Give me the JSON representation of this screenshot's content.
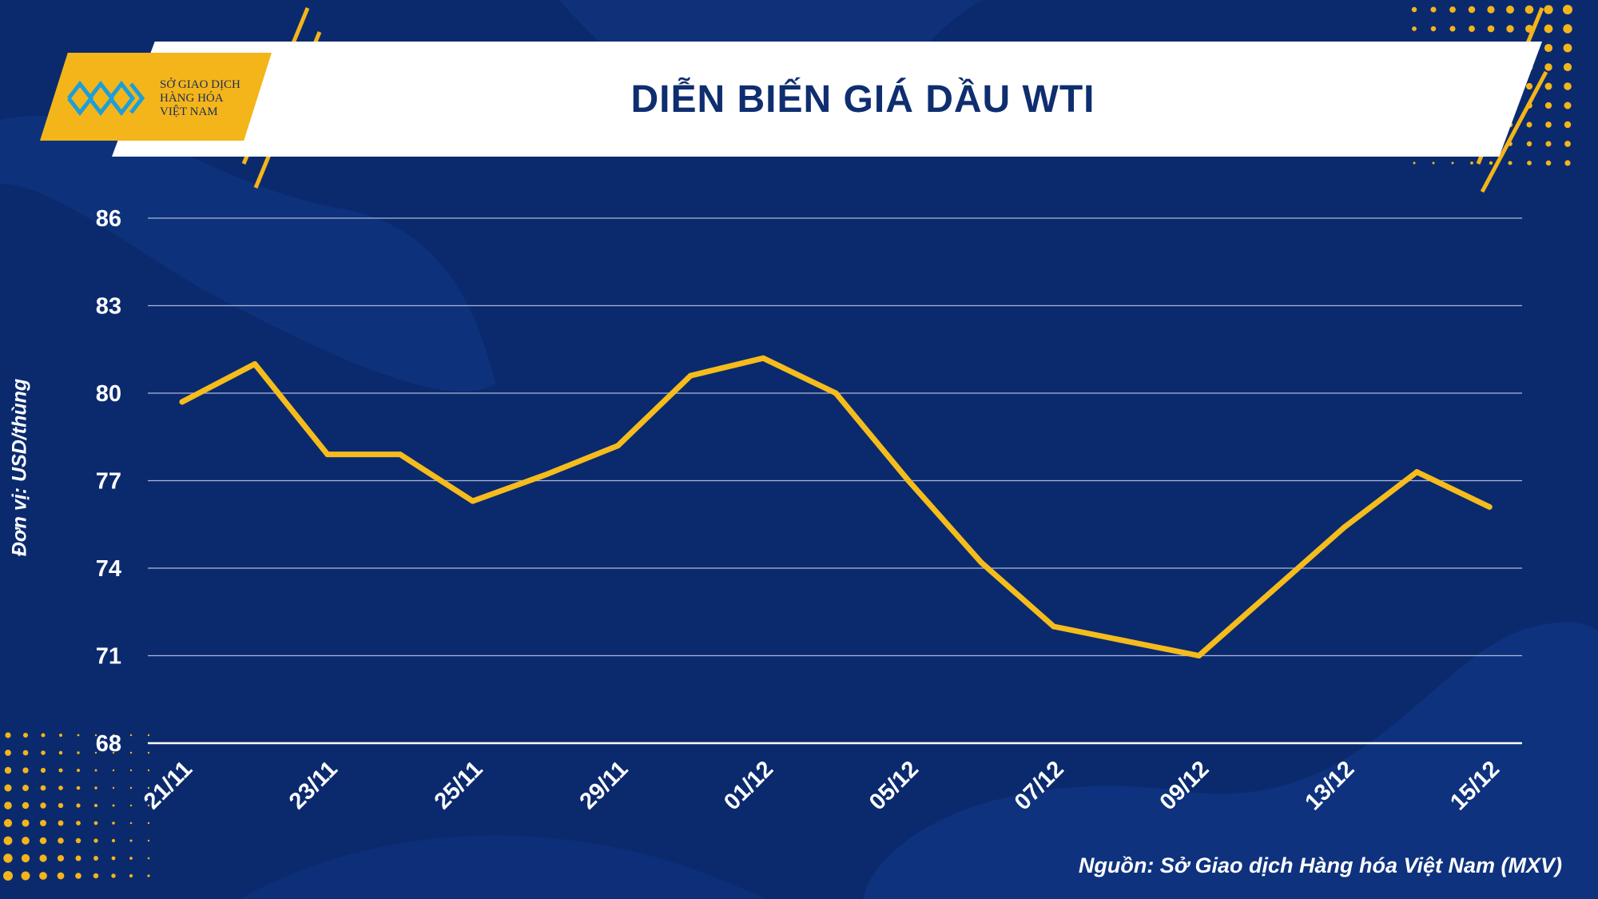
{
  "header": {
    "title": "DIỄN BIẾN GIÁ DẦU WTI",
    "logo_lines": [
      "SỞ GIAO DỊCH",
      "HÀNG HÓA",
      "VIỆT NAM"
    ]
  },
  "footer": {
    "source": "Nguồn: Sở Giao dịch Hàng hóa Việt Nam (MXV)"
  },
  "colors": {
    "background": "#0b2a6e",
    "line": "#f5bc1c",
    "accent": "#f4b51a",
    "grid": "#c9d3ea",
    "text": "#ffffff"
  },
  "chart_data": {
    "type": "line",
    "title": "DIỄN BIẾN GIÁ DẦU WTI",
    "xlabel": "",
    "ylabel": "Đơn vị: USD/thùng",
    "ylim": [
      68,
      86
    ],
    "yticks": [
      86,
      83,
      80,
      77,
      74,
      71,
      68
    ],
    "x_tick_labels": [
      "21/11",
      "23/11",
      "25/11",
      "29/11",
      "01/12",
      "05/12",
      "07/12",
      "09/12",
      "13/12",
      "15/12"
    ],
    "x_tick_positions": [
      0,
      2,
      4,
      6,
      8,
      10,
      12,
      14,
      16,
      18
    ],
    "grid": true,
    "legend": "none",
    "series": [
      {
        "values": [
          79.7,
          81.0,
          77.9,
          77.9,
          76.3,
          77.2,
          78.2,
          80.6,
          81.2,
          80.0,
          77.0,
          74.2,
          72.0,
          71.5,
          71.0,
          73.2,
          75.4,
          77.3,
          76.1
        ]
      }
    ]
  }
}
